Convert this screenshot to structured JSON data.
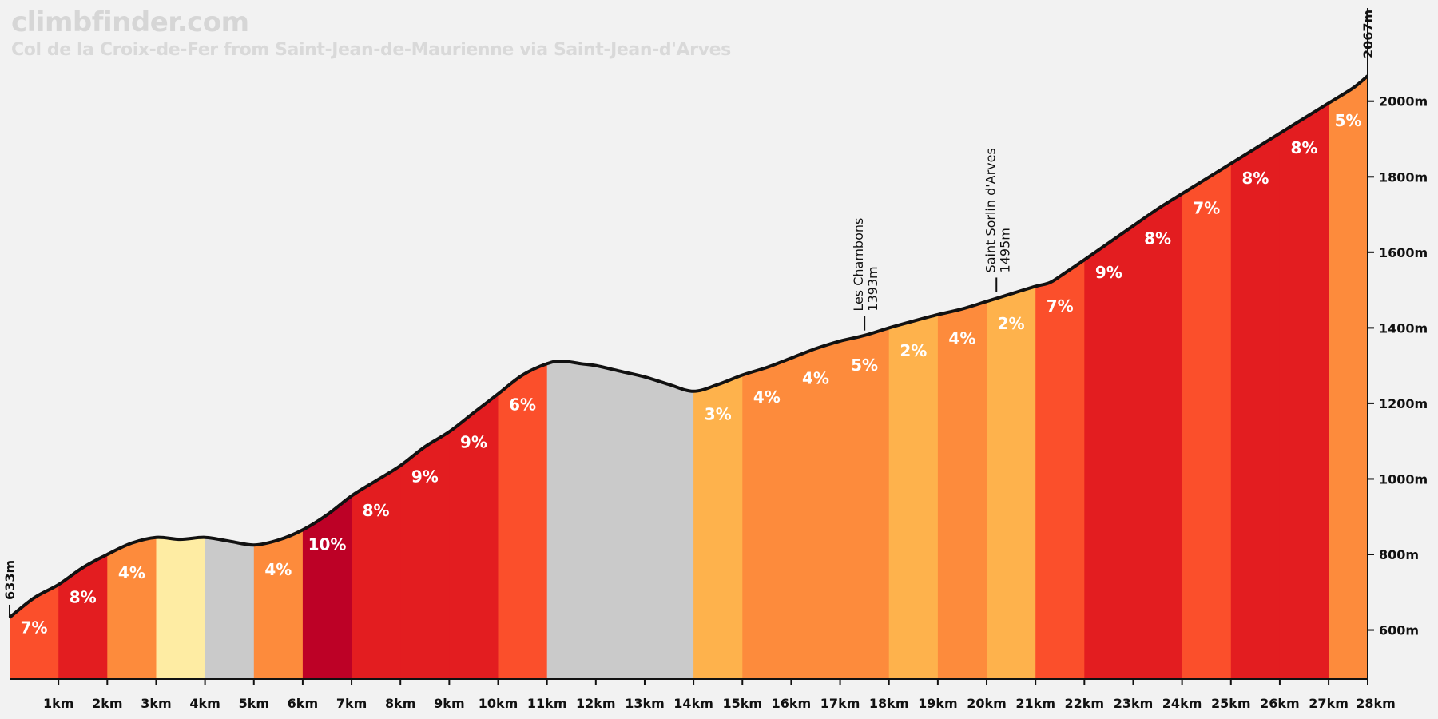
{
  "header": {
    "brand": "climbfinder.com",
    "subtitle": "Col de la Croix-de-Fer from Saint-Jean-de-Maurienne via Saint-Jean-d'Arves"
  },
  "chart_data": {
    "type": "area",
    "title": "Col de la Croix-de-Fer from Saint-Jean-de-Maurienne via Saint-Jean-d'Arves",
    "xlabel": "",
    "ylabel": "",
    "x_unit": "km",
    "y_unit": "m",
    "xlim": [
      0,
      27.8
    ],
    "ylim": [
      470,
      2120
    ],
    "x_ticks": [
      "1km",
      "2km",
      "3km",
      "4km",
      "5km",
      "6km",
      "7km",
      "8km",
      "9km",
      "10km",
      "11km",
      "12km",
      "13km",
      "14km",
      "15km",
      "16km",
      "17km",
      "18km",
      "19km",
      "20km",
      "21km",
      "22km",
      "23km",
      "24km",
      "25km",
      "26km",
      "27km",
      "28km"
    ],
    "y_ticks": [
      "600m",
      "800m",
      "1000m",
      "1200m",
      "1400m",
      "1600m",
      "1800m",
      "2000m"
    ],
    "y_tick_values": [
      600,
      800,
      1000,
      1200,
      1400,
      1600,
      1800,
      2000
    ],
    "start_label": "633m",
    "end_label": "2067m",
    "profile": {
      "x": [
        0,
        0.5,
        1,
        1.5,
        2,
        2.5,
        3,
        3.5,
        4,
        4.5,
        5,
        5.5,
        6,
        6.5,
        7,
        7.5,
        8,
        8.5,
        9,
        9.5,
        10,
        10.5,
        11,
        11.3,
        11.7,
        12,
        12.5,
        13,
        13.5,
        14,
        14.5,
        15,
        15.5,
        16,
        16.5,
        17,
        17.5,
        18,
        18.5,
        19,
        19.5,
        20,
        20.5,
        21,
        21.3,
        21.6,
        22,
        22.5,
        23,
        23.5,
        24,
        24.5,
        25,
        25.5,
        26,
        26.5,
        27,
        27.5,
        27.8
      ],
      "elevation": [
        633,
        685,
        720,
        765,
        800,
        830,
        845,
        840,
        845,
        835,
        825,
        838,
        865,
        905,
        955,
        995,
        1035,
        1085,
        1125,
        1175,
        1225,
        1275,
        1305,
        1312,
        1305,
        1300,
        1285,
        1270,
        1250,
        1232,
        1250,
        1275,
        1295,
        1320,
        1345,
        1365,
        1380,
        1400,
        1418,
        1435,
        1450,
        1470,
        1490,
        1510,
        1520,
        1545,
        1580,
        1625,
        1670,
        1715,
        1755,
        1795,
        1835,
        1875,
        1915,
        1955,
        1995,
        2035,
        2067
      ]
    },
    "segments": [
      {
        "start": 0,
        "end": 1,
        "grade": "7%",
        "color": "#fb4f2b"
      },
      {
        "start": 1,
        "end": 2,
        "grade": "8%",
        "color": "#e31d20"
      },
      {
        "start": 2,
        "end": 3,
        "grade": "4%",
        "color": "#fd8b3c"
      },
      {
        "start": 3,
        "end": 4,
        "grade": "",
        "color": "#feeca3"
      },
      {
        "start": 4,
        "end": 5,
        "grade": "",
        "color": "#cacaca"
      },
      {
        "start": 5,
        "end": 6,
        "grade": "4%",
        "color": "#fd8b3c"
      },
      {
        "start": 6,
        "end": 7,
        "grade": "10%",
        "color": "#bd0126"
      },
      {
        "start": 7,
        "end": 8,
        "grade": "8%",
        "color": "#e31d20"
      },
      {
        "start": 8,
        "end": 9,
        "grade": "9%",
        "color": "#e31d20"
      },
      {
        "start": 9,
        "end": 10,
        "grade": "9%",
        "color": "#e31d20"
      },
      {
        "start": 10,
        "end": 11,
        "grade": "6%",
        "color": "#fb4f2b"
      },
      {
        "start": 11,
        "end": 14,
        "grade": "",
        "color": "#cacaca"
      },
      {
        "start": 14,
        "end": 15,
        "grade": "3%",
        "color": "#feb24c"
      },
      {
        "start": 15,
        "end": 16,
        "grade": "4%",
        "color": "#fd8b3c"
      },
      {
        "start": 16,
        "end": 17,
        "grade": "4%",
        "color": "#fd8b3c"
      },
      {
        "start": 17,
        "end": 18,
        "grade": "5%",
        "color": "#fd8b3c"
      },
      {
        "start": 18,
        "end": 19,
        "grade": "2%",
        "color": "#feb24c"
      },
      {
        "start": 19,
        "end": 20,
        "grade": "4%",
        "color": "#fd8b3c"
      },
      {
        "start": 20,
        "end": 21,
        "grade": "2%",
        "color": "#feb24c"
      },
      {
        "start": 21,
        "end": 22,
        "grade": "7%",
        "color": "#fb4f2b"
      },
      {
        "start": 22,
        "end": 23,
        "grade": "9%",
        "color": "#e31d20"
      },
      {
        "start": 23,
        "end": 24,
        "grade": "8%",
        "color": "#e31d20"
      },
      {
        "start": 24,
        "end": 25,
        "grade": "7%",
        "color": "#fb4f2b"
      },
      {
        "start": 25,
        "end": 26,
        "grade": "8%",
        "color": "#e31d20"
      },
      {
        "start": 26,
        "end": 27,
        "grade": "8%",
        "color": "#e31d20"
      },
      {
        "start": 27,
        "end": 27.8,
        "grade": "5%",
        "color": "#fd8b3c"
      }
    ],
    "points_of_interest": [
      {
        "name": "Les Chambons",
        "elevation_label": "1393m",
        "km": 17.5,
        "elevation": 1393
      },
      {
        "name": "Saint Sorlin d'Arves",
        "elevation_label": "1495m",
        "km": 20.2,
        "elevation": 1495
      }
    ],
    "grid": false,
    "legend": "none"
  },
  "colors": {
    "background": "#f2f2f2",
    "profile_line": "#111111",
    "brand_text": "#d6d6d6"
  }
}
